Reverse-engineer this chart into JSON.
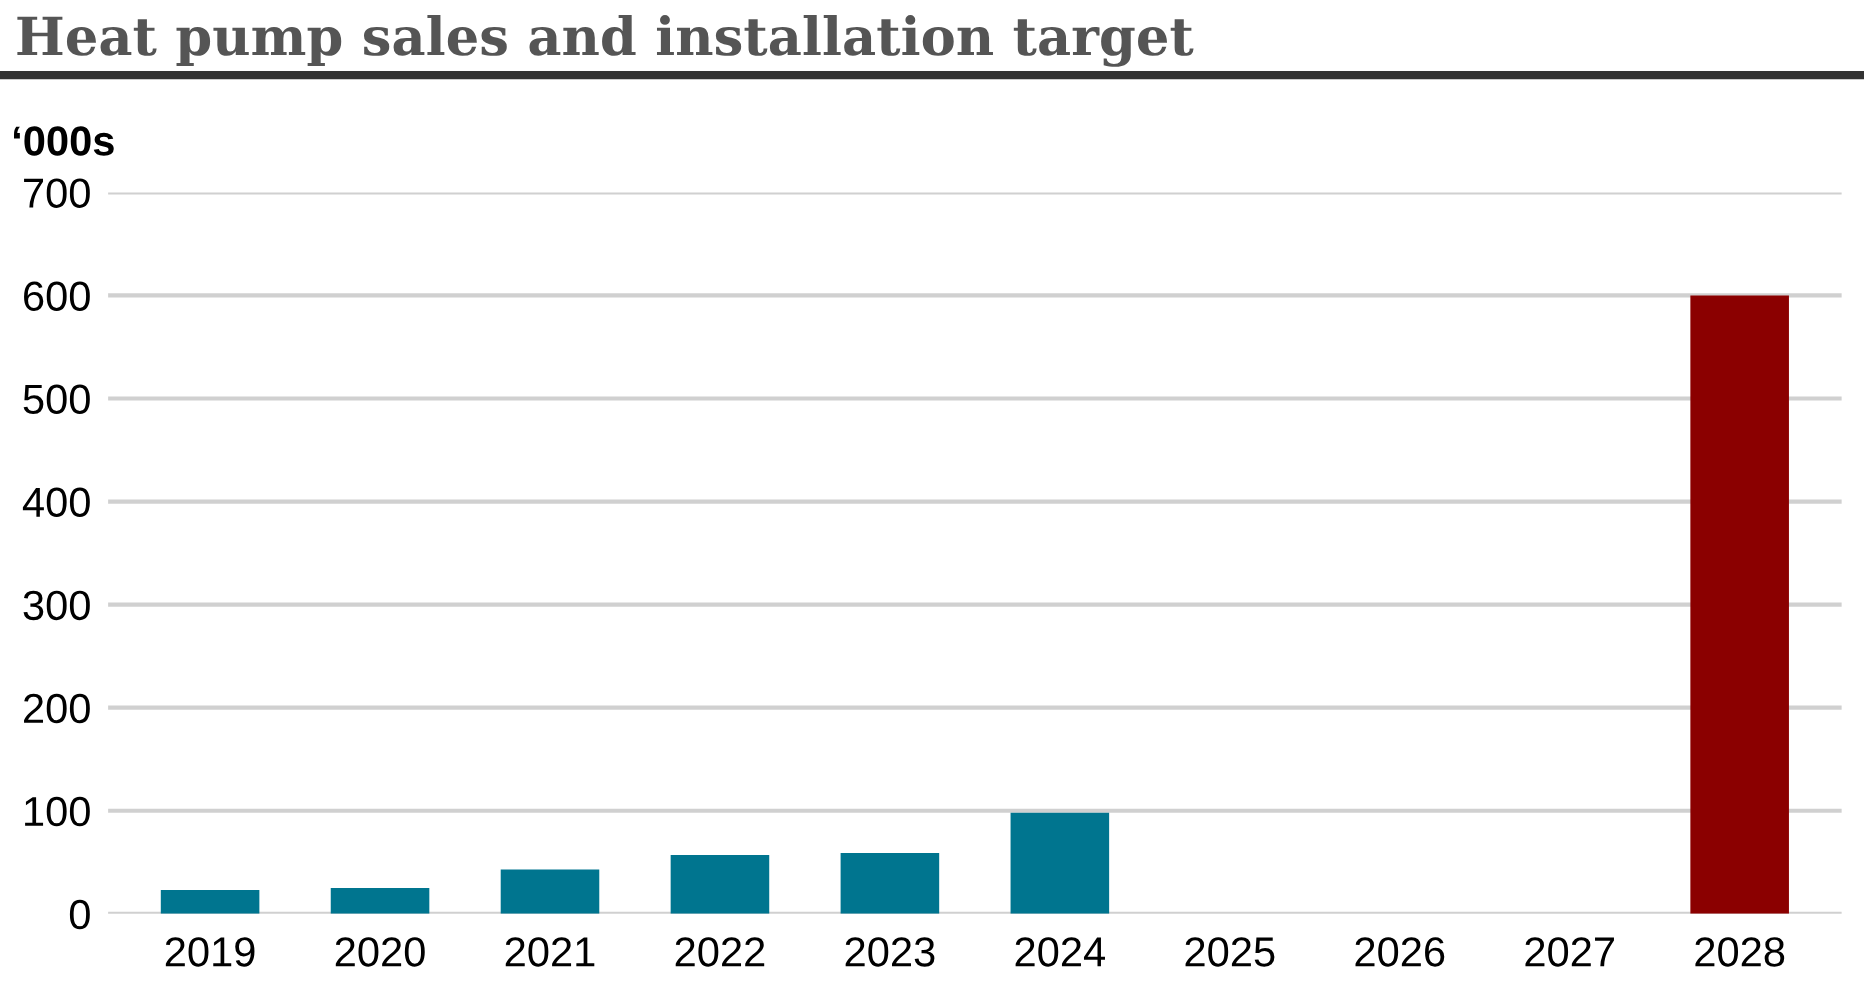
{
  "chart_data": {
    "type": "bar",
    "title": "Heat pump sales and installation target",
    "ylabel": "‘000s",
    "categories": [
      "2019",
      "2020",
      "2021",
      "2022",
      "2023",
      "2024",
      "2025",
      "2026",
      "2027",
      "2028"
    ],
    "values": [
      23,
      25,
      43,
      57,
      59,
      98,
      null,
      null,
      null,
      600
    ],
    "colors": [
      "#00758f",
      "#00758f",
      "#00758f",
      "#00758f",
      "#00758f",
      "#00758f",
      "#00758f",
      "#00758f",
      "#00758f",
      "#8b0000"
    ],
    "ylim": [
      0,
      700
    ],
    "yticks": [
      0,
      100,
      200,
      300,
      400,
      500,
      600,
      700
    ],
    "grid": "y"
  }
}
